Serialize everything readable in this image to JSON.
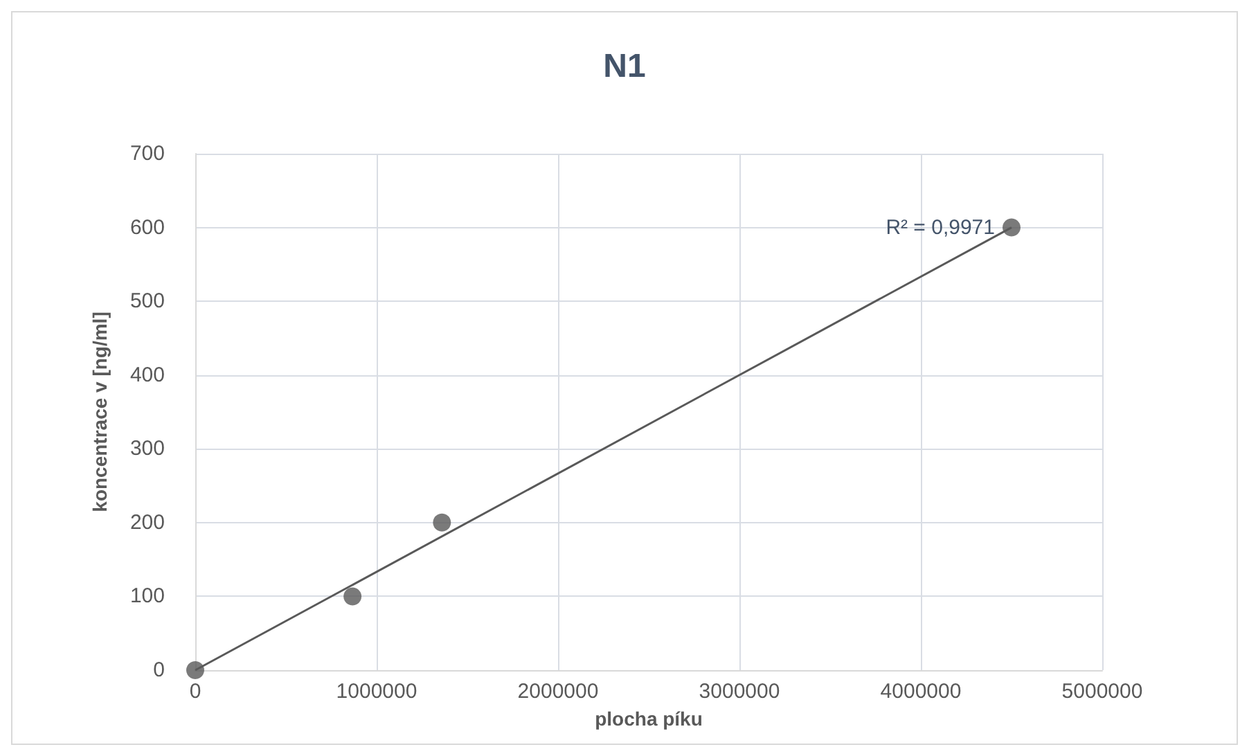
{
  "chart_data": {
    "type": "scatter",
    "title": "N1",
    "xlabel": "plocha píku",
    "ylabel": "koncentrace v [ng/ml]",
    "x": [
      0,
      867000,
      1360000,
      4500000
    ],
    "series": [
      {
        "color": "#595959",
        "values": [
          0,
          100,
          200,
          600
        ],
        "marker": "circle"
      },
      {
        "type": "line",
        "color": "#595959",
        "x": [
          0,
          4500000
        ],
        "values": [
          0,
          600
        ],
        "marker": "none"
      }
    ],
    "annotations": [
      {
        "text": "R² = 0,9971",
        "x": 4500000,
        "y": 600
      }
    ],
    "xlim": [
      0,
      5000000
    ],
    "xticks": [
      0,
      1000000,
      2000000,
      3000000,
      4000000,
      5000000
    ],
    "ylim": [
      0,
      700
    ],
    "yticks": [
      0,
      100,
      200,
      300,
      400,
      500,
      600,
      700
    ],
    "grid": true,
    "line_style": "solid"
  }
}
